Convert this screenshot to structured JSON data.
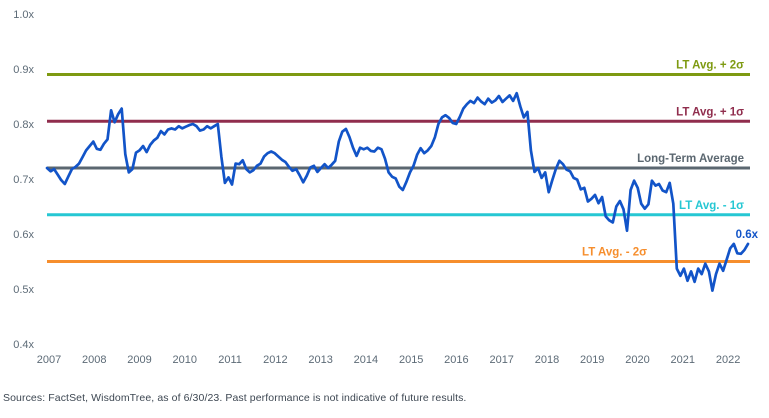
{
  "chart_data": {
    "type": "line",
    "title": "",
    "grid": "off",
    "legend": "none",
    "ylim": [
      0.4,
      1.0
    ],
    "line_color": "#1254c8",
    "end_point_label": "0.6x",
    "y_ticks": [
      {
        "label": "1.0x",
        "value": 1.0
      },
      {
        "label": "0.9x",
        "value": 0.9
      },
      {
        "label": "0.8x",
        "value": 0.8
      },
      {
        "label": "0.7x",
        "value": 0.7
      },
      {
        "label": "0.6x",
        "value": 0.6
      },
      {
        "label": "0.5x",
        "value": 0.5
      },
      {
        "label": "0.4x",
        "value": 0.4
      }
    ],
    "x_tick_labels": [
      "2007",
      "2008",
      "2009",
      "2010",
      "2011",
      "2012",
      "2013",
      "2014",
      "2015",
      "2016",
      "2017",
      "2018",
      "2019",
      "2020",
      "2021",
      "2022"
    ],
    "reference_lines": [
      {
        "label": "LT Avg. + 2σ",
        "value": 0.89,
        "color": "#7e9a11",
        "label_side": "right"
      },
      {
        "label": "LT Avg. + 1σ",
        "value": 0.805,
        "color": "#902d4d",
        "label_side": "right"
      },
      {
        "label": "Long-Term Average",
        "value": 0.72,
        "color": "#5b6770",
        "label_side": "right"
      },
      {
        "label": "LT Avg. - 1σ",
        "value": 0.635,
        "color": "#26c7d3",
        "label_side": "right"
      },
      {
        "label": "LT Avg. - 2σ",
        "value": 0.55,
        "color": "#f68e2d",
        "label_side": "inner-left"
      }
    ],
    "series_start": "2007",
    "series_end": "6/30/23",
    "values": [
      0.72,
      0.714,
      0.718,
      0.708,
      0.698,
      0.691,
      0.705,
      0.718,
      0.722,
      0.728,
      0.74,
      0.752,
      0.76,
      0.768,
      0.755,
      0.753,
      0.764,
      0.772,
      0.825,
      0.803,
      0.818,
      0.828,
      0.745,
      0.712,
      0.718,
      0.748,
      0.752,
      0.76,
      0.749,
      0.762,
      0.77,
      0.775,
      0.787,
      0.781,
      0.79,
      0.792,
      0.79,
      0.796,
      0.792,
      0.795,
      0.798,
      0.8,
      0.796,
      0.788,
      0.79,
      0.796,
      0.792,
      0.796,
      0.8,
      0.74,
      0.693,
      0.703,
      0.69,
      0.728,
      0.727,
      0.734,
      0.718,
      0.712,
      0.716,
      0.724,
      0.728,
      0.741,
      0.747,
      0.75,
      0.747,
      0.741,
      0.735,
      0.731,
      0.722,
      0.715,
      0.718,
      0.707,
      0.694,
      0.706,
      0.721,
      0.724,
      0.713,
      0.72,
      0.727,
      0.72,
      0.726,
      0.733,
      0.768,
      0.786,
      0.791,
      0.776,
      0.757,
      0.742,
      0.757,
      0.754,
      0.757,
      0.751,
      0.75,
      0.757,
      0.754,
      0.737,
      0.712,
      0.704,
      0.701,
      0.686,
      0.68,
      0.695,
      0.712,
      0.724,
      0.744,
      0.756,
      0.747,
      0.752,
      0.76,
      0.776,
      0.8,
      0.812,
      0.816,
      0.811,
      0.802,
      0.8,
      0.813,
      0.828,
      0.836,
      0.842,
      0.838,
      0.848,
      0.841,
      0.836,
      0.846,
      0.839,
      0.843,
      0.851,
      0.84,
      0.846,
      0.852,
      0.842,
      0.856,
      0.832,
      0.812,
      0.822,
      0.752,
      0.713,
      0.72,
      0.702,
      0.712,
      0.676,
      0.698,
      0.718,
      0.733,
      0.727,
      0.717,
      0.714,
      0.702,
      0.699,
      0.681,
      0.684,
      0.659,
      0.664,
      0.671,
      0.656,
      0.667,
      0.632,
      0.625,
      0.621,
      0.65,
      0.66,
      0.645,
      0.606,
      0.68,
      0.697,
      0.684,
      0.655,
      0.646,
      0.654,
      0.697,
      0.688,
      0.691,
      0.679,
      0.676,
      0.693,
      0.655,
      0.537,
      0.524,
      0.537,
      0.515,
      0.532,
      0.513,
      0.537,
      0.527,
      0.546,
      0.532,
      0.497,
      0.527,
      0.546,
      0.533,
      0.553,
      0.574,
      0.582,
      0.565,
      0.564,
      0.571,
      0.582
    ],
    "colors": {
      "tick_text": "#5d6b77",
      "source_text": "#3d4752"
    }
  },
  "footer": {
    "source_text": "Sources: FactSet, WisdomTree, as of 6/30/23. Past performance is not indicative of future results."
  }
}
